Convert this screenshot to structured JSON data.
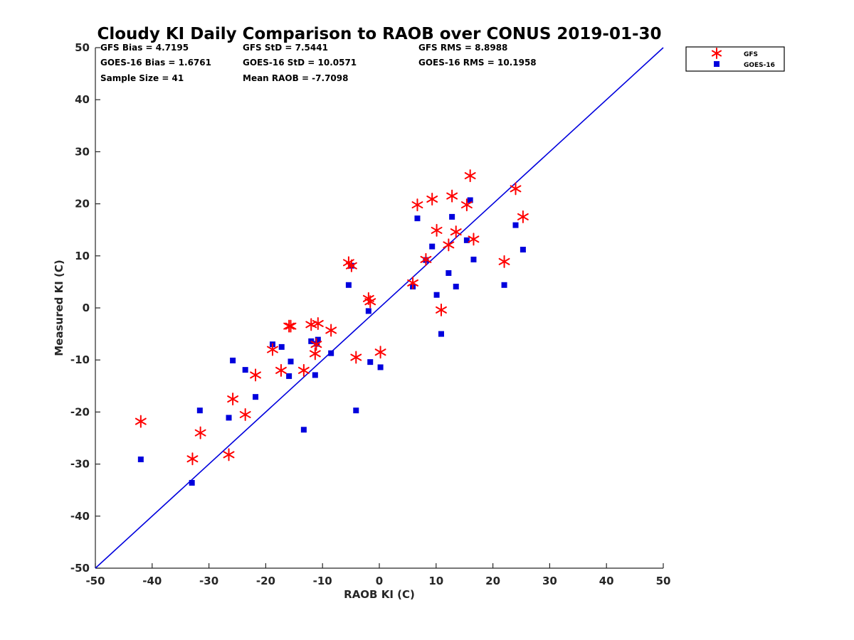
{
  "chart_data": {
    "type": "scatter",
    "title": "Cloudy KI Daily Comparison to RAOB over CONUS 2019-01-30",
    "xlabel": "RAOB KI (C)",
    "ylabel": "Measured KI (C)",
    "xlim": [
      -50,
      50
    ],
    "ylim": [
      -50,
      50
    ],
    "xticks": [
      -50,
      -40,
      -30,
      -20,
      -10,
      0,
      10,
      20,
      30,
      40,
      50
    ],
    "yticks": [
      -50,
      -40,
      -30,
      -20,
      -10,
      0,
      10,
      20,
      30,
      40,
      50
    ],
    "grid": false,
    "legend_position": "top-right outside",
    "reference_line": {
      "name": "1:1 line",
      "x": [
        -50,
        50
      ],
      "y": [
        -50,
        50
      ],
      "color": "#0000dd"
    },
    "stats": {
      "gfs_bias": "GFS Bias = 4.7195",
      "gfs_std": "GFS StD = 7.5441",
      "gfs_rms": "GFS RMS = 8.8988",
      "goes_bias": "GOES-16 Bias = 1.6761",
      "goes_std": "GOES-16 StD = 10.0571",
      "goes_rms": "GOES-16 RMS = 10.1958",
      "sample_size": "Sample Size = 41",
      "mean_raob": "Mean RAOB = -7.7098"
    },
    "series": [
      {
        "name": "GFS",
        "marker": "asterisk",
        "color": "#ff0000",
        "points": [
          [
            -42.0,
            -21.8
          ],
          [
            -32.9,
            -29.0
          ],
          [
            -31.5,
            -24.0
          ],
          [
            -26.5,
            -28.2
          ],
          [
            -25.8,
            -17.5
          ],
          [
            -23.6,
            -20.5
          ],
          [
            -21.8,
            -12.9
          ],
          [
            -18.8,
            -8.0
          ],
          [
            -17.3,
            -12.0
          ],
          [
            -15.9,
            -3.5
          ],
          [
            -15.6,
            -3.5
          ],
          [
            -13.3,
            -12.0
          ],
          [
            -12.0,
            -3.2
          ],
          [
            -11.3,
            -8.8
          ],
          [
            -11.1,
            -7.0
          ],
          [
            -10.8,
            -3.0
          ],
          [
            -8.5,
            -4.3
          ],
          [
            -5.4,
            8.7
          ],
          [
            -4.9,
            8.1
          ],
          [
            -4.1,
            -9.5
          ],
          [
            -1.9,
            1.8
          ],
          [
            -1.6,
            1.2
          ],
          [
            0.2,
            -8.5
          ],
          [
            5.9,
            4.8
          ],
          [
            6.7,
            19.8
          ],
          [
            8.2,
            9.3
          ],
          [
            9.3,
            20.9
          ],
          [
            10.1,
            14.9
          ],
          [
            10.9,
            -0.4
          ],
          [
            12.2,
            12.1
          ],
          [
            12.8,
            21.5
          ],
          [
            13.5,
            14.6
          ],
          [
            15.4,
            19.8
          ],
          [
            16.0,
            25.4
          ],
          [
            16.6,
            13.2
          ],
          [
            22.0,
            8.9
          ],
          [
            24.0,
            22.9
          ],
          [
            25.3,
            17.5
          ]
        ]
      },
      {
        "name": "GOES-16",
        "marker": "square",
        "color": "#0000dd",
        "points": [
          [
            -42.0,
            -29.1
          ],
          [
            -33.0,
            -33.6
          ],
          [
            -31.6,
            -19.7
          ],
          [
            -26.5,
            -21.1
          ],
          [
            -25.8,
            -10.1
          ],
          [
            -23.6,
            -11.9
          ],
          [
            -21.8,
            -17.1
          ],
          [
            -18.8,
            -7.0
          ],
          [
            -17.2,
            -7.5
          ],
          [
            -15.9,
            -13.1
          ],
          [
            -15.6,
            -10.3
          ],
          [
            -13.3,
            -23.4
          ],
          [
            -12.0,
            -6.4
          ],
          [
            -11.3,
            -12.9
          ],
          [
            -11.0,
            -6.9
          ],
          [
            -10.8,
            -6.1
          ],
          [
            -8.5,
            -8.7
          ],
          [
            -5.4,
            4.4
          ],
          [
            -4.9,
            8.1
          ],
          [
            -4.1,
            -19.7
          ],
          [
            -1.9,
            -0.6
          ],
          [
            -1.6,
            -10.4
          ],
          [
            0.2,
            -11.4
          ],
          [
            5.9,
            4.1
          ],
          [
            6.7,
            17.2
          ],
          [
            8.2,
            9.2
          ],
          [
            9.3,
            11.8
          ],
          [
            10.1,
            2.5
          ],
          [
            10.9,
            -5.0
          ],
          [
            12.2,
            6.7
          ],
          [
            12.8,
            17.5
          ],
          [
            13.5,
            4.1
          ],
          [
            15.4,
            13.0
          ],
          [
            16.0,
            20.7
          ],
          [
            16.6,
            9.3
          ],
          [
            22.0,
            4.4
          ],
          [
            24.0,
            15.9
          ],
          [
            25.3,
            11.2
          ]
        ]
      }
    ]
  }
}
